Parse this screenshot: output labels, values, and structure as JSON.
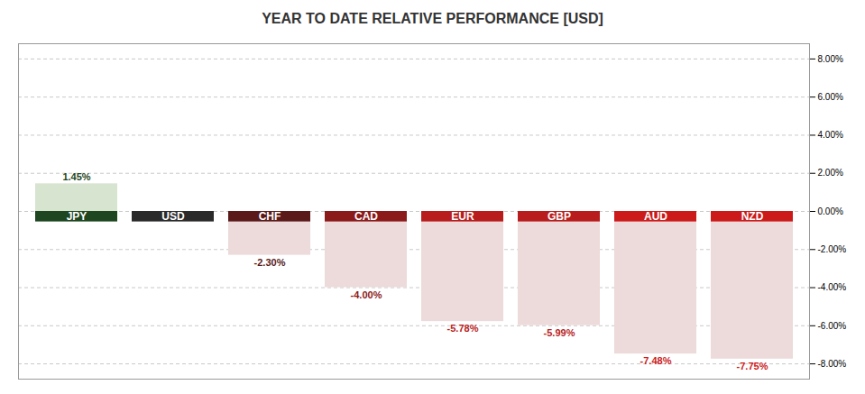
{
  "chart_data": {
    "type": "bar",
    "title": "YEAR TO DATE RELATIVE PERFORMANCE  [USD]",
    "categories": [
      "JPY",
      "USD",
      "CHF",
      "CAD",
      "EUR",
      "GBP",
      "AUD",
      "NZD"
    ],
    "values": [
      1.45,
      0.0,
      -2.3,
      -4.0,
      -5.78,
      -5.99,
      -7.48,
      -7.75
    ],
    "value_labels": [
      "1.45%",
      null,
      "-2.30%",
      "-4.00%",
      "-5.78%",
      "-5.99%",
      "-7.48%",
      "-7.75%"
    ],
    "data_labels": true,
    "colors": [
      "#d6e4d0",
      "#ffffff",
      "#eddada",
      "#eddada",
      "#eddada",
      "#eddada",
      "#eddada",
      "#eddada"
    ],
    "header_colors": [
      "#1e4620",
      "#2a2a2a",
      "#5a1a1a",
      "#8b1a1a",
      "#b81c1c",
      "#b81c1c",
      "#cc1a1a",
      "#cc1a1a"
    ],
    "ylim": [
      -8.8,
      8.8
    ],
    "yticks": [
      {
        "value": -8,
        "label": "-8.00%"
      },
      {
        "value": -6,
        "label": "-6.00%"
      },
      {
        "value": -4,
        "label": "-4.00%"
      },
      {
        "value": -2,
        "label": "-2.00%"
      },
      {
        "value": 0,
        "label": "0.00%"
      },
      {
        "value": 2,
        "label": "2.00%"
      },
      {
        "value": 4,
        "label": "4.00%"
      },
      {
        "value": 6,
        "label": "6.00%"
      },
      {
        "value": 8,
        "label": "8.00%"
      }
    ],
    "grid": true
  }
}
